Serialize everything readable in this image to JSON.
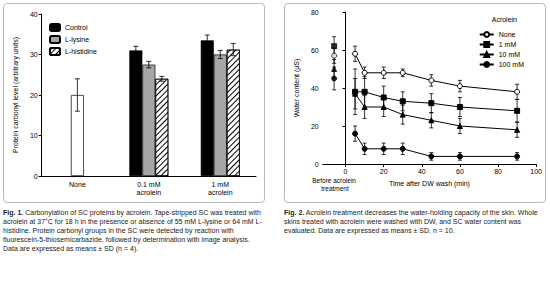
{
  "chart_data": [
    {
      "type": "bar",
      "ylabel": "Protein carbonyl level (arbitrary units)",
      "categories": [
        "None",
        "0.1 mM\nacrolein",
        "1 mM\nacrolein"
      ],
      "series": [
        {
          "name": "Control",
          "color": "#000000",
          "values": [
            null,
            31,
            33.5
          ],
          "errors": [
            null,
            1,
            1.3
          ]
        },
        {
          "name": "L-lysine",
          "color": "#a6a6a6",
          "values": [
            null,
            27.5,
            30
          ],
          "errors": [
            null,
            0.8,
            1
          ]
        },
        {
          "name": "L-histidine",
          "color": "#ffffff",
          "values": [
            null,
            24,
            31.2
          ],
          "errors": [
            null,
            0.6,
            1.5
          ]
        },
        {
          "color": "#ffffff",
          "values": [
            20,
            null,
            null
          ],
          "errors": [
            4,
            null,
            null
          ]
        }
      ],
      "ylim": [
        0,
        40
      ],
      "yticks": [
        0,
        10,
        20,
        30,
        40
      ],
      "grid": false,
      "legend": "upper left",
      "caption": {
        "label": "Fig. 1.",
        "text": "Carbonylation of SC proteins by acrolein. Tape-stripped SC was treated with acrolein at 37°C for 18 h in the presence or absence of 55 mM L-lysine or 64 mM L-histidine. Protein carbonyl groups in the SC were detected by reaction with fluorescein-5-thiosemicarbazide, followed by determination with image analysis. Data are expressed as means ± SD (n = 4)."
      }
    },
    {
      "type": "line",
      "xlabel": "Time after DW wash (min)",
      "ylabel": "Water content (μS)",
      "legend_title": "Acrolein",
      "before": {
        "label": "Before acrolein treatment",
        "x": -6
      },
      "x": [
        5,
        10,
        20,
        30,
        45,
        60,
        90
      ],
      "series": [
        {
          "name": "None",
          "color": "#000000",
          "marker": "open circle",
          "values": [
            58,
            48,
            48,
            48,
            44,
            41,
            38
          ],
          "errors": [
            4,
            3,
            3,
            2,
            3,
            3,
            4
          ],
          "before_value": 57,
          "before_error": 4
        },
        {
          "name": "1 mM",
          "color": "#000000",
          "marker": "square",
          "values": [
            38,
            38,
            35,
            33,
            32,
            30,
            28
          ],
          "errors": [
            12,
            8,
            6,
            5,
            5,
            5,
            6
          ],
          "before_value": 62,
          "before_error": 5
        },
        {
          "name": "10 mM",
          "color": "#000000",
          "marker": "triangle",
          "values": [
            37,
            30,
            30,
            26,
            23,
            20,
            18
          ],
          "errors": [
            8,
            6,
            5,
            5,
            4,
            4,
            4
          ],
          "before_value": 50,
          "before_error": 5
        },
        {
          "name": "100 mM",
          "color": "#000000",
          "marker": "circle",
          "values": [
            16,
            8,
            8,
            8,
            4,
            4,
            4
          ],
          "errors": [
            4,
            3,
            3,
            3,
            2,
            2,
            2
          ],
          "before_value": 45,
          "before_error": 6
        }
      ],
      "xlim": [
        -12,
        100
      ],
      "xticks": [
        0,
        20,
        40,
        60,
        80,
        100
      ],
      "ylim": [
        0,
        80
      ],
      "yticks": [
        0,
        20,
        40,
        60,
        80
      ],
      "grid": false,
      "legend": "upper right",
      "caption": {
        "label": "Fig. 2.",
        "text": "Acrolein treatment decreases the water-holding capacity of the skin. Whole skins treated with acrolein were washed with DW, and SC water content was evaluated. Data are expressed as means ± SD, n = 10."
      }
    }
  ]
}
